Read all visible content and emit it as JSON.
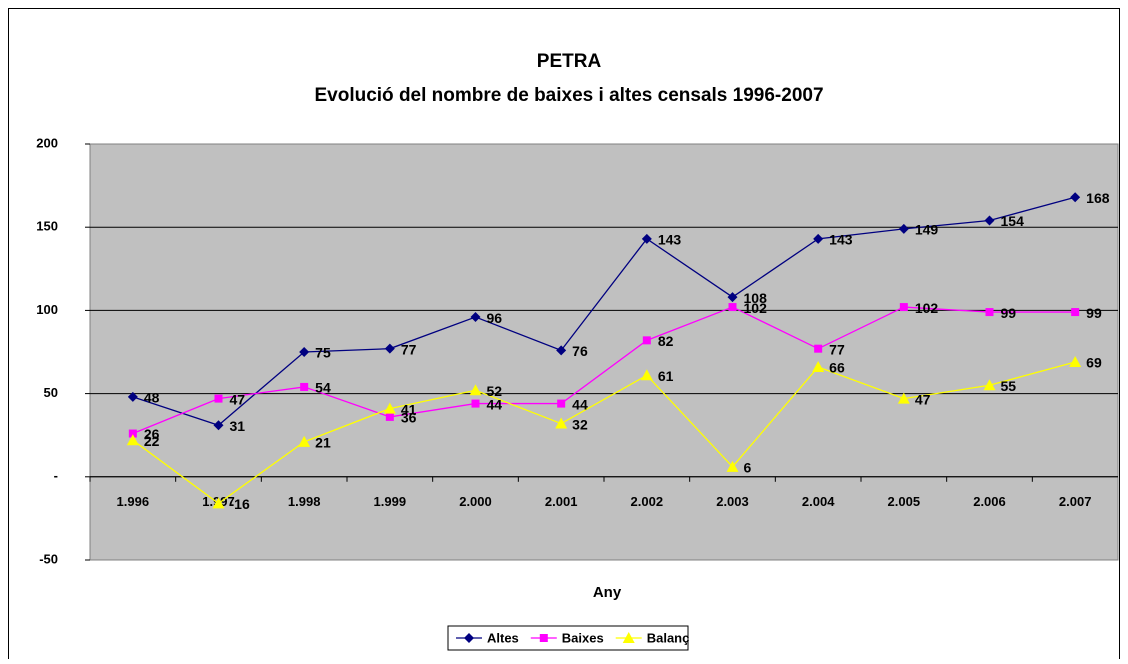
{
  "chart_data": {
    "type": "line",
    "title": "PETRA",
    "subtitle": "Evolució del nombre de baixes i altes censals 1996-2007",
    "x_label": "Any",
    "categories": [
      "1.996",
      "1.997",
      "1.998",
      "1.999",
      "2.000",
      "2.001",
      "2.002",
      "2.003",
      "2.004",
      "2.005",
      "2.006",
      "2.007"
    ],
    "series": [
      {
        "name": "Altes",
        "color": "#000080",
        "marker": "diamond",
        "values": [
          48,
          31,
          75,
          77,
          96,
          76,
          143,
          108,
          143,
          149,
          154,
          168
        ]
      },
      {
        "name": "Baixes",
        "color": "#ff00ff",
        "marker": "square",
        "values": [
          26,
          47,
          54,
          36,
          44,
          44,
          82,
          102,
          77,
          102,
          99,
          99
        ]
      },
      {
        "name": "Balanç",
        "color": "#ffff00",
        "marker": "triangle",
        "values": [
          22,
          -16,
          21,
          41,
          52,
          32,
          61,
          6,
          66,
          47,
          55,
          69
        ]
      }
    ],
    "ylim": [
      -50,
      200
    ],
    "yticks": [
      -50,
      {
        "value": 0,
        "label": "-"
      },
      50,
      100,
      150,
      200
    ],
    "grid": true,
    "legend": "bottom"
  }
}
